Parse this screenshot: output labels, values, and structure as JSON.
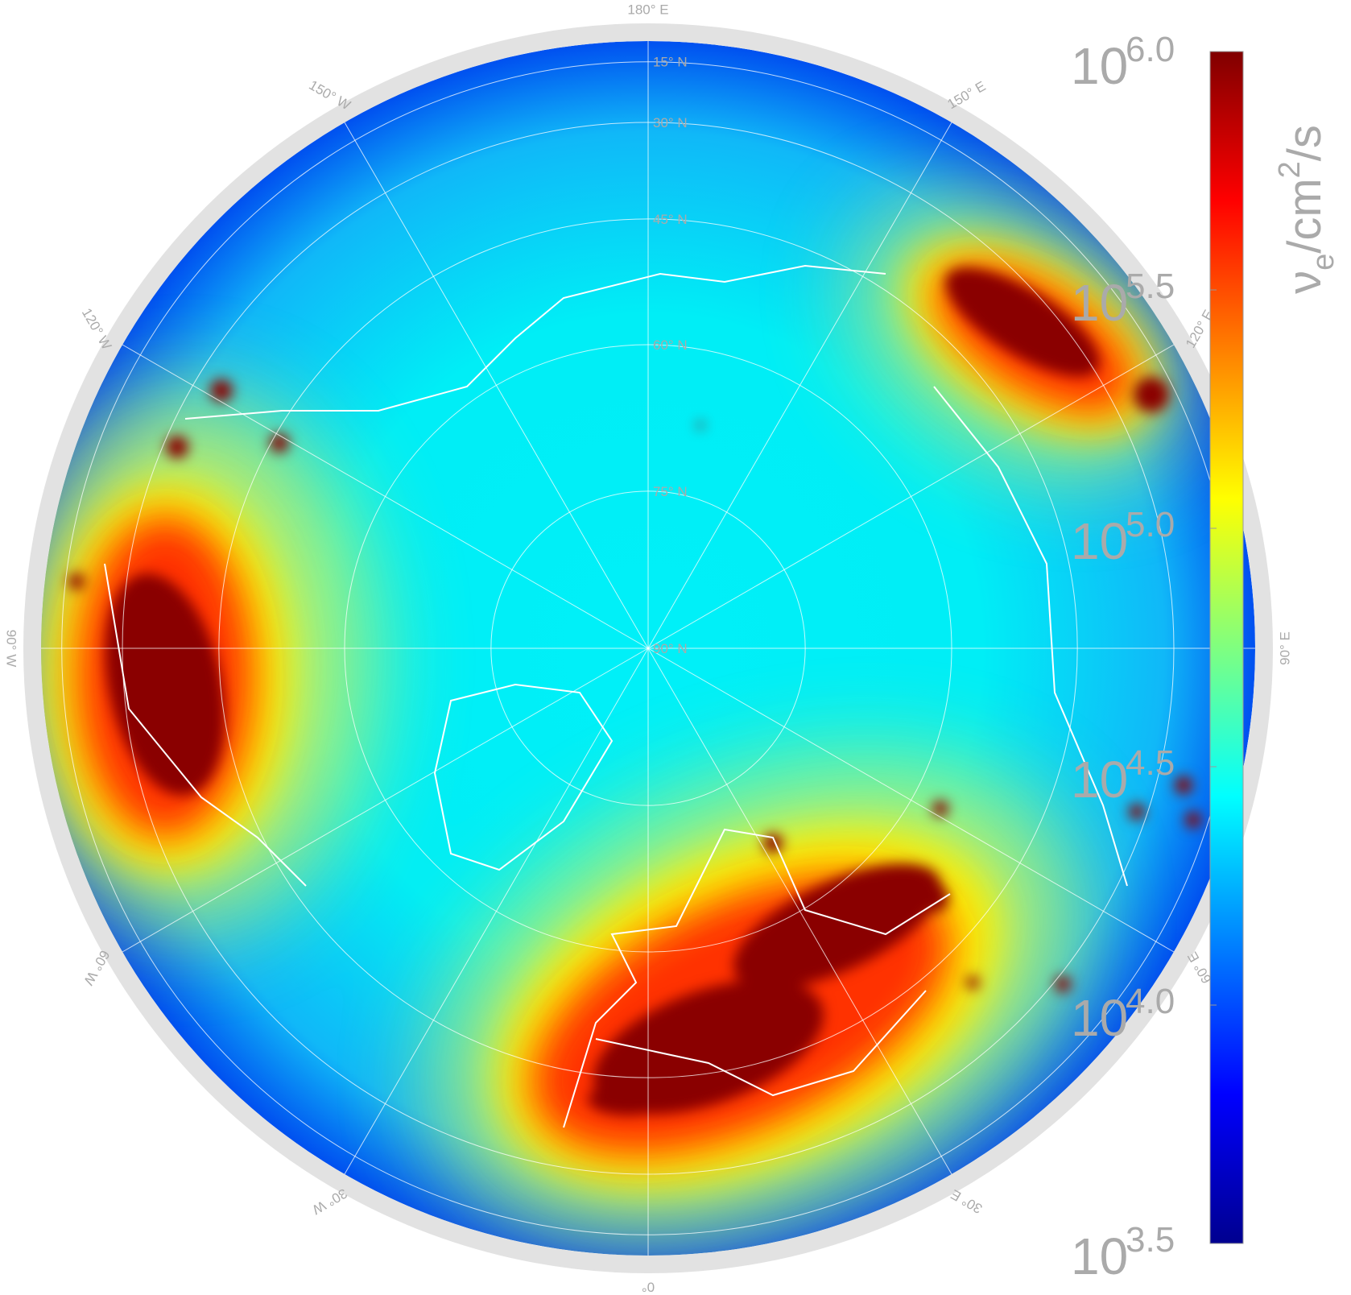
{
  "map": {
    "graticule": {
      "latitudes": [
        {
          "value": 15,
          "label": "15° N"
        },
        {
          "value": 30,
          "label": "30° N"
        },
        {
          "value": 45,
          "label": "45° N"
        },
        {
          "value": 60,
          "label": "60° N"
        },
        {
          "value": 75,
          "label": "75° N"
        },
        {
          "value": 90,
          "label": "90° N"
        }
      ],
      "longitudes": [
        {
          "value": 180,
          "label": "180° E"
        },
        {
          "value": 150,
          "label": "150° E"
        },
        {
          "value": 120,
          "label": "120° E"
        },
        {
          "value": 90,
          "label": "90° E"
        },
        {
          "value": 60,
          "label": "60° E"
        },
        {
          "value": 30,
          "label": "30° E"
        },
        {
          "value": 0,
          "label": "0°"
        },
        {
          "value": -30,
          "label": "30° W"
        },
        {
          "value": -60,
          "label": "60° W"
        },
        {
          "value": -90,
          "label": "90° W"
        },
        {
          "value": -120,
          "label": "120° W"
        },
        {
          "value": -150,
          "label": "150° W"
        }
      ]
    },
    "colorbar": {
      "base": "10",
      "range": [
        3.5,
        6.0
      ],
      "ticks": [
        {
          "value": 6,
          "label": "6.0"
        },
        {
          "value": 5.5,
          "label": "5.5"
        },
        {
          "value": 5,
          "label": "5.0"
        },
        {
          "value": 4.5,
          "label": "4.5"
        },
        {
          "value": 4,
          "label": "4.0"
        },
        {
          "value": 3.5,
          "label": "3.5"
        }
      ],
      "label": {
        "symbol": "ν",
        "subscript": "e",
        "unit": "/cm",
        "power": "2",
        "rest": "/s"
      }
    }
  }
}
